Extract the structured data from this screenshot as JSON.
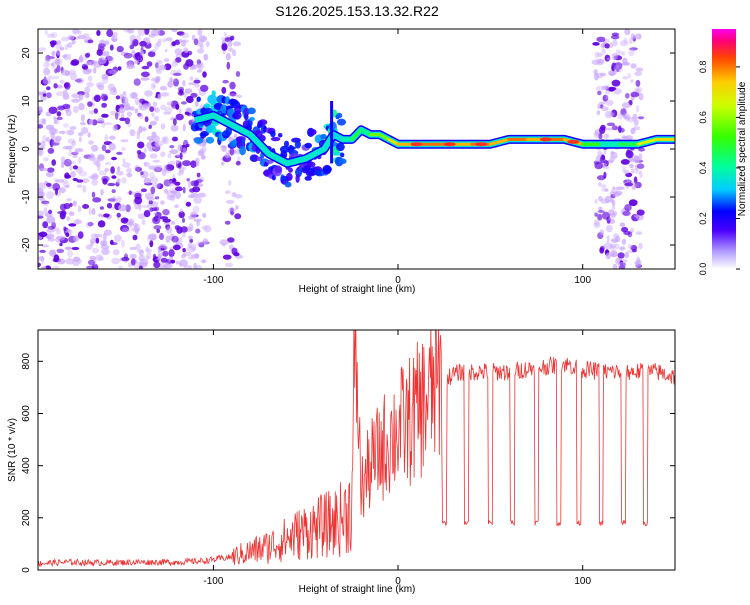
{
  "title": "S126.2025.153.13.32.R22",
  "colors": {
    "snr_line": "#ee3333",
    "spectrum_main": "#5f00e0",
    "spectrum_light": "#c9a4ff"
  },
  "chart_data": [
    {
      "type": "heatmap",
      "xlabel": "Height of straight line (km)",
      "ylabel": "Frequency (Hz)",
      "xlim": [
        -195,
        150
      ],
      "ylim": [
        -25,
        25
      ],
      "x_ticks": [
        -100,
        0,
        100
      ],
      "x_tick_labels": [
        "-100",
        "0",
        "100"
      ],
      "y_ticks": [
        -20,
        -10,
        0,
        10,
        20
      ],
      "y_tick_labels": [
        "-20",
        "-10",
        "0",
        "10",
        "20"
      ],
      "grid": false,
      "colorbar": {
        "label": "Normalized spectral amplitude",
        "range": [
          0,
          0.95
        ],
        "ticks": [
          0.0,
          0.2,
          0.4,
          0.6,
          0.8
        ],
        "tick_labels": [
          "0.0",
          "0.2",
          "0.4",
          "0.6",
          "0.8"
        ]
      },
      "ridge": {
        "x": [
          -110,
          -100,
          -90,
          -80,
          -70,
          -60,
          -50,
          -40,
          -35,
          -30,
          -25,
          -20,
          -15,
          -10,
          -5,
          0,
          10,
          20,
          30,
          40,
          50,
          60,
          70,
          80,
          90,
          100,
          110,
          120,
          130,
          140,
          150
        ],
        "freq": [
          6,
          7,
          5,
          3,
          -1,
          -3,
          -2,
          0,
          3,
          2,
          2,
          4,
          3,
          3,
          2,
          1,
          1,
          1,
          1,
          1,
          1,
          2,
          2,
          2,
          2,
          1,
          1,
          1,
          1,
          2,
          2
        ],
        "amplitude": [
          0.3,
          0.4,
          0.3,
          0.3,
          0.25,
          0.25,
          0.25,
          0.3,
          0.45,
          0.35,
          0.4,
          0.5,
          0.45,
          0.6,
          0.6,
          0.75,
          0.8,
          0.85,
          0.85,
          0.8,
          0.85,
          0.8,
          0.85,
          0.8,
          0.85,
          0.8,
          0.55,
          0.4,
          0.5,
          0.7,
          0.75
        ]
      }
    },
    {
      "type": "line",
      "xlabel": "Height of straight line (km)",
      "ylabel": "SNR (10 * v/v)",
      "xlim": [
        -195,
        150
      ],
      "ylim": [
        0,
        920
      ],
      "x_ticks": [
        -100,
        0,
        100
      ],
      "x_tick_labels": [
        "-100",
        "0",
        "100"
      ],
      "y_ticks": [
        0,
        200,
        400,
        600,
        800
      ],
      "y_tick_labels": [
        "0",
        "200",
        "400",
        "600",
        "800"
      ],
      "grid": false,
      "series": [
        {
          "x": [
            -195,
            -180,
            -160,
            -140,
            -120,
            -105,
            -100,
            -90,
            -80,
            -70,
            -60,
            -50,
            -40,
            -35,
            -30,
            -25,
            -23,
            -20,
            -15,
            -10,
            -5,
            0,
            5,
            10,
            15,
            20,
            25,
            30,
            35,
            40,
            50,
            60,
            70,
            80,
            90,
            100,
            110,
            120,
            130,
            140,
            150
          ],
          "y": [
            25,
            30,
            28,
            30,
            30,
            35,
            40,
            50,
            70,
            90,
            120,
            150,
            170,
            180,
            200,
            250,
            900,
            300,
            400,
            450,
            500,
            540,
            560,
            600,
            650,
            700,
            730,
            750,
            760,
            760,
            760,
            760,
            770,
            780,
            790,
            770,
            760,
            760,
            760,
            760,
            740
          ]
        }
      ],
      "dropouts_x": [
        25,
        37,
        50,
        62,
        75,
        87,
        98,
        110,
        122,
        134
      ],
      "dropout_level": 180
    }
  ]
}
